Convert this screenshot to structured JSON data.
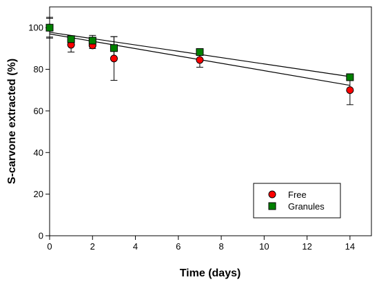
{
  "chart_data": {
    "type": "scatter",
    "xlabel": "Time (days)",
    "ylabel": "S-carvone extracted (%)",
    "xlim": [
      0,
      15
    ],
    "ylim": [
      0,
      110
    ],
    "xticks": [
      0,
      2,
      4,
      6,
      8,
      10,
      12,
      14
    ],
    "yticks": [
      0,
      20,
      40,
      60,
      80,
      100
    ],
    "grid": false,
    "legend_position": "bottom-right",
    "series": [
      {
        "name": "Free",
        "marker": "circle",
        "color": "#ff0000",
        "x": [
          0,
          1,
          2,
          3,
          7,
          14
        ],
        "y": [
          100,
          91.8,
          91.5,
          85.2,
          84.5,
          70
        ],
        "error": [
          5,
          3.5,
          1.5,
          10.5,
          3.5,
          7
        ],
        "fit": {
          "x0": 0,
          "y0": 97.0,
          "x1": 14,
          "y1": 72.3
        }
      },
      {
        "name": "Granules",
        "marker": "square",
        "color": "#008000",
        "x": [
          0,
          1,
          2,
          3,
          7,
          14
        ],
        "y": [
          100,
          94.5,
          93.8,
          90.2,
          88.3,
          76.2
        ],
        "error": [
          4.5,
          1.5,
          2.5,
          5.5,
          1.5,
          1
        ],
        "fit": {
          "x0": 0,
          "y0": 97.8,
          "x1": 14,
          "y1": 76.5
        }
      }
    ]
  }
}
